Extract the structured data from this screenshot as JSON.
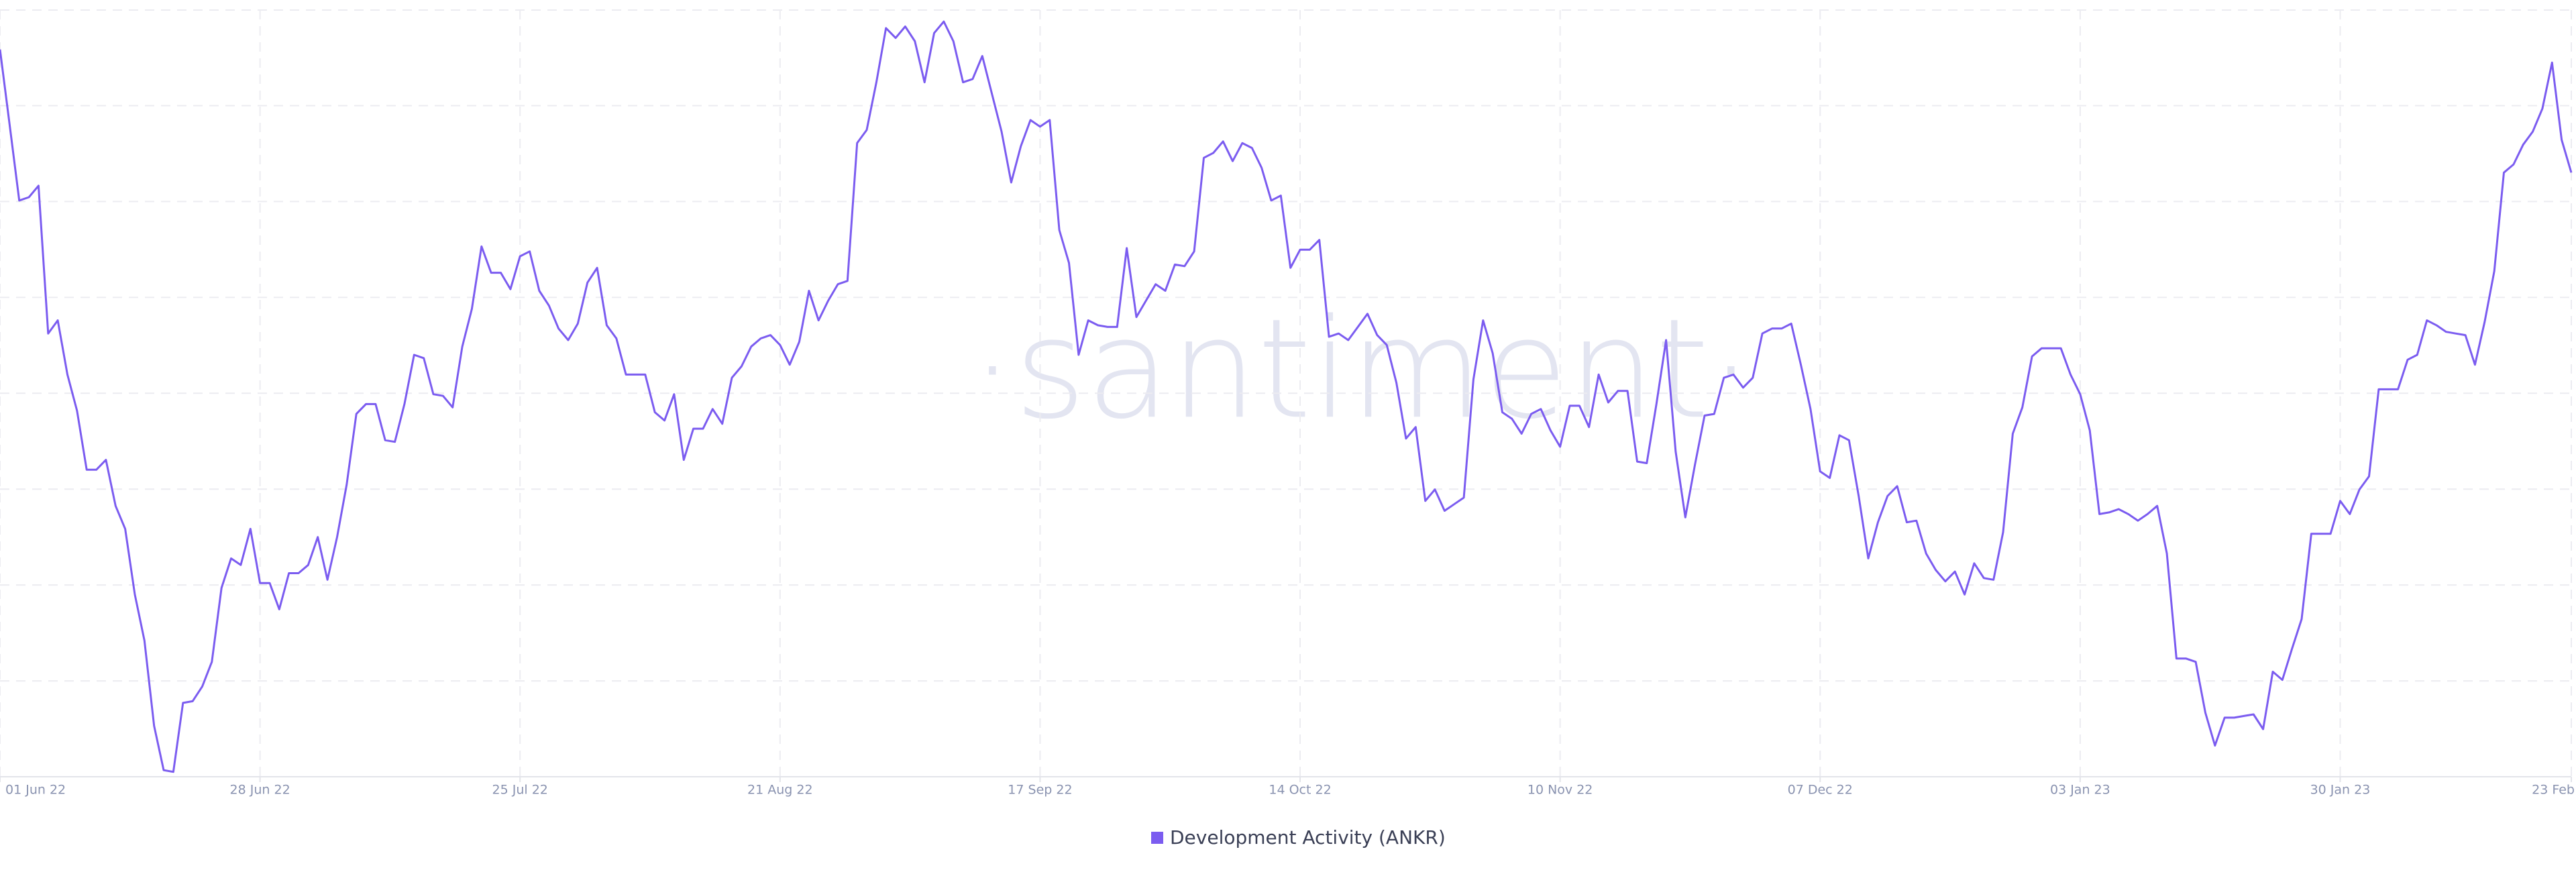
{
  "chart_data": {
    "type": "line",
    "watermark": "·santiment·",
    "x": [
      "2022-06-01",
      "2022-06-02",
      "2022-06-03",
      "2022-06-04",
      "2022-06-05",
      "2022-06-06",
      "2022-06-07",
      "2022-06-08",
      "2022-06-09",
      "2022-06-10",
      "2022-06-11",
      "2022-06-12",
      "2022-06-13",
      "2022-06-14",
      "2022-06-15",
      "2022-06-16",
      "2022-06-17",
      "2022-06-18",
      "2022-06-19",
      "2022-06-20",
      "2022-06-21",
      "2022-06-22",
      "2022-06-23",
      "2022-06-24",
      "2022-06-25",
      "2022-06-26",
      "2022-06-27",
      "2022-06-28",
      "2022-06-29",
      "2022-06-30",
      "2022-07-01",
      "2022-07-02",
      "2022-07-03",
      "2022-07-04",
      "2022-07-05",
      "2022-07-06",
      "2022-07-07",
      "2022-07-08",
      "2022-07-09",
      "2022-07-10",
      "2022-07-11",
      "2022-07-12",
      "2022-07-13",
      "2022-07-14",
      "2022-07-15",
      "2022-07-16",
      "2022-07-17",
      "2022-07-18",
      "2022-07-19",
      "2022-07-20",
      "2022-07-21",
      "2022-07-22",
      "2022-07-23",
      "2022-07-24",
      "2022-07-25",
      "2022-07-26",
      "2022-07-27",
      "2022-07-28",
      "2022-07-29",
      "2022-07-30",
      "2022-07-31",
      "2022-08-01",
      "2022-08-02",
      "2022-08-03",
      "2022-08-04",
      "2022-08-05",
      "2022-08-06",
      "2022-08-07",
      "2022-08-08",
      "2022-08-09",
      "2022-08-10",
      "2022-08-11",
      "2022-08-12",
      "2022-08-13",
      "2022-08-14",
      "2022-08-15",
      "2022-08-16",
      "2022-08-17",
      "2022-08-18",
      "2022-08-19",
      "2022-08-20",
      "2022-08-21",
      "2022-08-22",
      "2022-08-23",
      "2022-08-24",
      "2022-08-25",
      "2022-08-26",
      "2022-08-27",
      "2022-08-28",
      "2022-08-29",
      "2022-08-30",
      "2022-08-31",
      "2022-09-01",
      "2022-09-02",
      "2022-09-03",
      "2022-09-04",
      "2022-09-05",
      "2022-09-06",
      "2022-09-07",
      "2022-09-08",
      "2022-09-09",
      "2022-09-10",
      "2022-09-11",
      "2022-09-12",
      "2022-09-13",
      "2022-09-14",
      "2022-09-15",
      "2022-09-16",
      "2022-09-17",
      "2022-09-18",
      "2022-09-19",
      "2022-09-20",
      "2022-09-21",
      "2022-09-22",
      "2022-09-23",
      "2022-09-24",
      "2022-09-25",
      "2022-09-26",
      "2022-09-27",
      "2022-09-28",
      "2022-09-29",
      "2022-09-30",
      "2022-10-01",
      "2022-10-02",
      "2022-10-03",
      "2022-10-04",
      "2022-10-05",
      "2022-10-06",
      "2022-10-07",
      "2022-10-08",
      "2022-10-09",
      "2022-10-10",
      "2022-10-11",
      "2022-10-12",
      "2022-10-13",
      "2022-10-14",
      "2022-10-15",
      "2022-10-16",
      "2022-10-17",
      "2022-10-18",
      "2022-10-19",
      "2022-10-20",
      "2022-10-21",
      "2022-10-22",
      "2022-10-23",
      "2022-10-24",
      "2022-10-25",
      "2022-10-26",
      "2022-10-27",
      "2022-10-28",
      "2022-10-29",
      "2022-10-30",
      "2022-10-31",
      "2022-11-01",
      "2022-11-02",
      "2022-11-03",
      "2022-11-04",
      "2022-11-05",
      "2022-11-06",
      "2022-11-07",
      "2022-11-08",
      "2022-11-09",
      "2022-11-10",
      "2022-11-11",
      "2022-11-12",
      "2022-11-13",
      "2022-11-14",
      "2022-11-15",
      "2022-11-16",
      "2022-11-17",
      "2022-11-18",
      "2022-11-19",
      "2022-11-20",
      "2022-11-21",
      "2022-11-22",
      "2022-11-23",
      "2022-11-24",
      "2022-11-25",
      "2022-11-26",
      "2022-11-27",
      "2022-11-28",
      "2022-11-29",
      "2022-11-30",
      "2022-12-01",
      "2022-12-02",
      "2022-12-03",
      "2022-12-04",
      "2022-12-05",
      "2022-12-06",
      "2022-12-07",
      "2022-12-08",
      "2022-12-09",
      "2022-12-10",
      "2022-12-11",
      "2022-12-12",
      "2022-12-13",
      "2022-12-14",
      "2022-12-15",
      "2022-12-16",
      "2022-12-17",
      "2022-12-18",
      "2022-12-19",
      "2022-12-20",
      "2022-12-21",
      "2022-12-22",
      "2022-12-23",
      "2022-12-24",
      "2022-12-25",
      "2022-12-26",
      "2022-12-27",
      "2022-12-28",
      "2022-12-29",
      "2022-12-30",
      "2022-12-31",
      "2023-01-01",
      "2023-01-02",
      "2023-01-03",
      "2023-01-04",
      "2023-01-05",
      "2023-01-06",
      "2023-01-07",
      "2023-01-08",
      "2023-01-09",
      "2023-01-10",
      "2023-01-11",
      "2023-01-12",
      "2023-01-13",
      "2023-01-14",
      "2023-01-15",
      "2023-01-16",
      "2023-01-17",
      "2023-01-18",
      "2023-01-19",
      "2023-01-20",
      "2023-01-21",
      "2023-01-22",
      "2023-01-23",
      "2023-01-24",
      "2023-01-25",
      "2023-01-26",
      "2023-01-27",
      "2023-01-28",
      "2023-01-29",
      "2023-01-30",
      "2023-01-31",
      "2023-02-01",
      "2023-02-02",
      "2023-02-03",
      "2023-02-04",
      "2023-02-05",
      "2023-02-06",
      "2023-02-07",
      "2023-02-08",
      "2023-02-09",
      "2023-02-10",
      "2023-02-11",
      "2023-02-12",
      "2023-02-13",
      "2023-02-14",
      "2023-02-15",
      "2023-02-16",
      "2023-02-17",
      "2023-02-18",
      "2023-02-19",
      "2023-02-20",
      "2023-02-21",
      "2023-02-22",
      "2023-02-23"
    ],
    "series": [
      {
        "name": "Development Activity (ANKR)",
        "color": "#7b5cf0",
        "values": [
          443,
          397,
          351,
          353,
          360,
          270,
          278,
          245,
          223,
          187,
          187,
          193,
          165,
          151,
          111,
          83,
          31,
          4,
          3,
          45,
          46,
          55,
          70,
          115,
          133,
          129,
          151,
          118,
          118,
          102,
          124,
          124,
          129,
          146,
          120,
          146,
          178,
          221,
          227,
          227,
          205,
          204,
          227,
          257,
          255,
          233,
          232,
          225,
          262,
          285,
          323,
          307,
          307,
          297,
          317,
          320,
          296,
          287,
          273,
          266,
          276,
          301,
          310,
          275,
          267,
          245,
          245,
          245,
          222,
          217,
          233,
          193,
          212,
          212,
          224,
          215,
          243,
          250,
          262,
          267,
          269,
          263,
          251,
          265,
          296,
          278,
          290,
          300,
          302,
          386,
          394,
          423,
          456,
          450,
          457,
          448,
          423,
          453,
          460,
          448,
          423,
          425,
          439,
          416,
          393,
          362,
          384,
          400,
          396,
          400,
          333,
          313,
          257,
          278,
          275,
          274,
          274,
          322,
          280,
          290,
          300,
          296,
          312,
          311,
          320,
          377,
          380,
          387,
          375,
          386,
          383,
          371,
          351,
          354,
          310,
          321,
          321,
          327,
          268,
          270,
          266,
          274,
          282,
          269,
          263,
          240,
          206,
          213,
          168,
          175,
          162,
          166,
          170,
          242,
          278,
          258,
          222,
          218,
          209,
          221,
          224,
          211,
          201,
          226,
          226,
          213,
          245,
          228,
          235,
          235,
          192,
          191,
          227,
          266,
          198,
          158,
          190,
          220,
          221,
          243,
          245,
          237,
          243,
          270,
          273,
          273,
          276,
          251,
          224,
          186,
          182,
          208,
          205,
          171,
          133,
          155,
          171,
          177,
          155,
          156,
          136,
          126,
          119,
          125,
          111,
          130,
          121,
          120,
          149,
          209,
          225,
          256,
          261,
          261,
          261,
          245,
          233,
          211,
          160,
          161,
          163,
          160,
          156,
          160,
          165,
          136,
          72,
          72,
          70,
          39,
          19,
          36,
          36,
          37,
          38,
          29,
          64,
          59,
          78,
          96,
          148,
          148,
          148,
          168,
          160,
          175,
          183,
          236,
          236,
          236,
          254,
          257,
          278,
          275,
          271,
          270,
          269,
          251,
          277,
          308,
          368,
          373,
          385,
          393,
          407,
          435,
          388,
          368
        ]
      }
    ],
    "xlim": [
      "2022-06-01",
      "2023-02-23"
    ],
    "xticks": [
      {
        "value": "2022-06-01",
        "label": "01 Jun 22"
      },
      {
        "value": "2022-06-28",
        "label": "28 Jun 22"
      },
      {
        "value": "2022-07-25",
        "label": "25 Jul 22"
      },
      {
        "value": "2022-08-21",
        "label": "21 Aug 22"
      },
      {
        "value": "2022-09-17",
        "label": "17 Sep 22"
      },
      {
        "value": "2022-10-14",
        "label": "14 Oct 22"
      },
      {
        "value": "2022-11-10",
        "label": "10 Nov 22"
      },
      {
        "value": "2022-12-07",
        "label": "07 Dec 22"
      },
      {
        "value": "2023-01-03",
        "label": "03 Jan 23"
      },
      {
        "value": "2023-01-30",
        "label": "30 Jan 23"
      },
      {
        "value": "2023-02-23",
        "label": "23 Feb"
      }
    ],
    "ylim": [
      0,
      467
    ],
    "yticks": [
      0,
      58.4,
      116.8,
      175.2,
      233.6,
      292,
      350.4,
      408.8,
      467
    ],
    "grid": true
  }
}
